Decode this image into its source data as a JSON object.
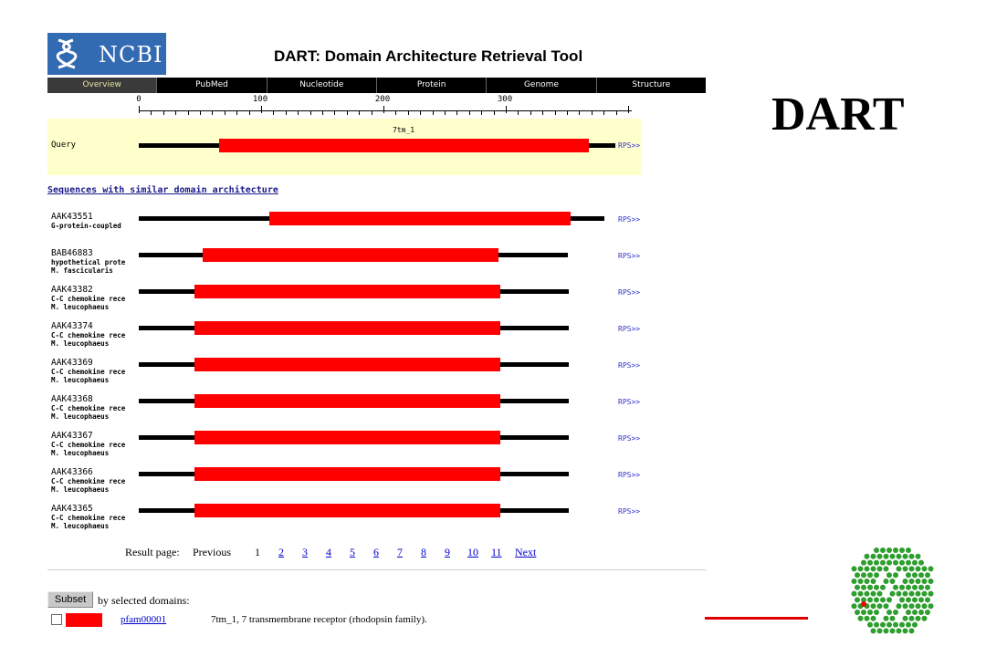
{
  "header": {
    "logo_text": "NCBI",
    "title": "DART: Domain Architecture Retrieval Tool"
  },
  "nav": [
    "Overview",
    "PubMed",
    "Nucleotide",
    "Protein",
    "Genome",
    "Structure"
  ],
  "ruler": {
    "labels": [
      "0",
      "100",
      "200",
      "300"
    ]
  },
  "query": {
    "label": "Query",
    "domain_label": "7tm_1",
    "rps_label": "RPS>>"
  },
  "similar_heading": "Sequences with similar domain architecture",
  "sequences": [
    {
      "accession": "AAK43551",
      "desc1": "G-protein-coupled",
      "desc2": "",
      "rps": "RPS>>"
    },
    {
      "accession": "BAB46883",
      "desc1": "hypothetical prote",
      "desc2": "M. fascicularis",
      "rps": "RPS>>"
    },
    {
      "accession": "AAK43382",
      "desc1": "C-C chemokine rece",
      "desc2": "M. leucophaeus",
      "rps": "RPS>>"
    },
    {
      "accession": "AAK43374",
      "desc1": "C-C chemokine rece",
      "desc2": "M. leucophaeus",
      "rps": "RPS>>"
    },
    {
      "accession": "AAK43369",
      "desc1": "C-C chemokine rece",
      "desc2": "M. leucophaeus",
      "rps": "RPS>>"
    },
    {
      "accession": "AAK43368",
      "desc1": "C-C chemokine rece",
      "desc2": "M. leucophaeus",
      "rps": "RPS>>"
    },
    {
      "accession": "AAK43367",
      "desc1": "C-C chemokine rece",
      "desc2": "M. leucophaeus",
      "rps": "RPS>>"
    },
    {
      "accession": "AAK43366",
      "desc1": "C-C chemokine rece",
      "desc2": "M. leucophaeus",
      "rps": "RPS>>"
    },
    {
      "accession": "AAK43365",
      "desc1": "C-C chemokine rece",
      "desc2": "M. leucophaeus",
      "rps": "RPS>>"
    }
  ],
  "pager": {
    "label": "Result page:",
    "previous": "Previous",
    "current": "1",
    "pages": [
      "2",
      "3",
      "4",
      "5",
      "6",
      "7",
      "8",
      "9",
      "10",
      "11"
    ],
    "next": "Next"
  },
  "subset": {
    "button": "Subset",
    "by_domains": "by selected domains:",
    "domain_link": "pfam00001",
    "domain_desc": "7tm_1, 7 transmembrane receptor (rhodopsin family).",
    "domain_color": "#ff0000"
  },
  "slide_title": "DART",
  "colors": {
    "domain": "#ff0000",
    "nav_bg": "#000000",
    "logo_bg": "#336bb3",
    "query_bg": "#ffffcc",
    "link": "#0000cc"
  },
  "icons": [
    "ncbi-helix-icon",
    "hexagon-dna-logo"
  ]
}
